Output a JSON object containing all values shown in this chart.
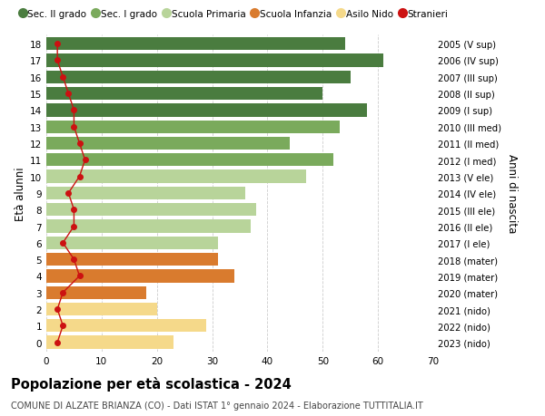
{
  "ages": [
    18,
    17,
    16,
    15,
    14,
    13,
    12,
    11,
    10,
    9,
    8,
    7,
    6,
    5,
    4,
    3,
    2,
    1,
    0
  ],
  "years_labels": [
    "2005 (V sup)",
    "2006 (IV sup)",
    "2007 (III sup)",
    "2008 (II sup)",
    "2009 (I sup)",
    "2010 (III med)",
    "2011 (II med)",
    "2012 (I med)",
    "2013 (V ele)",
    "2014 (IV ele)",
    "2015 (III ele)",
    "2016 (II ele)",
    "2017 (I ele)",
    "2018 (mater)",
    "2019 (mater)",
    "2020 (mater)",
    "2021 (nido)",
    "2022 (nido)",
    "2023 (nido)"
  ],
  "values": [
    54,
    61,
    55,
    50,
    58,
    53,
    44,
    52,
    47,
    36,
    38,
    37,
    31,
    31,
    34,
    18,
    20,
    29,
    23
  ],
  "stranieri": [
    2,
    2,
    3,
    4,
    5,
    5,
    6,
    7,
    6,
    4,
    5,
    5,
    3,
    5,
    6,
    3,
    2,
    3,
    2
  ],
  "bar_colors": [
    "#4a7c3f",
    "#4a7c3f",
    "#4a7c3f",
    "#4a7c3f",
    "#4a7c3f",
    "#7aaa5c",
    "#7aaa5c",
    "#7aaa5c",
    "#b8d49a",
    "#b8d49a",
    "#b8d49a",
    "#b8d49a",
    "#b8d49a",
    "#d97b2e",
    "#d97b2e",
    "#d97b2e",
    "#f5d98a",
    "#f5d98a",
    "#f5d98a"
  ],
  "legend_labels": [
    "Sec. II grado",
    "Sec. I grado",
    "Scuola Primaria",
    "Scuola Infanzia",
    "Asilo Nido",
    "Stranieri"
  ],
  "legend_colors_list": [
    "#4a7c3f",
    "#7aaa5c",
    "#b8d49a",
    "#d97b2e",
    "#f5d98a",
    "#cc1111"
  ],
  "stranieri_color": "#cc1111",
  "ylabel_left": "Età alunni",
  "ylabel_right": "Anni di nascita",
  "title_main": "Popolazione per età scolastica - 2024",
  "title_sub": "COMUNE DI ALZATE BRIANZA (CO) - Dati ISTAT 1° gennaio 2024 - Elaborazione TUTTITALIA.IT",
  "xlim": [
    0,
    70
  ],
  "xticks": [
    0,
    10,
    20,
    30,
    40,
    50,
    60,
    70
  ],
  "background_color": "#ffffff",
  "grid_color": "#cccccc"
}
